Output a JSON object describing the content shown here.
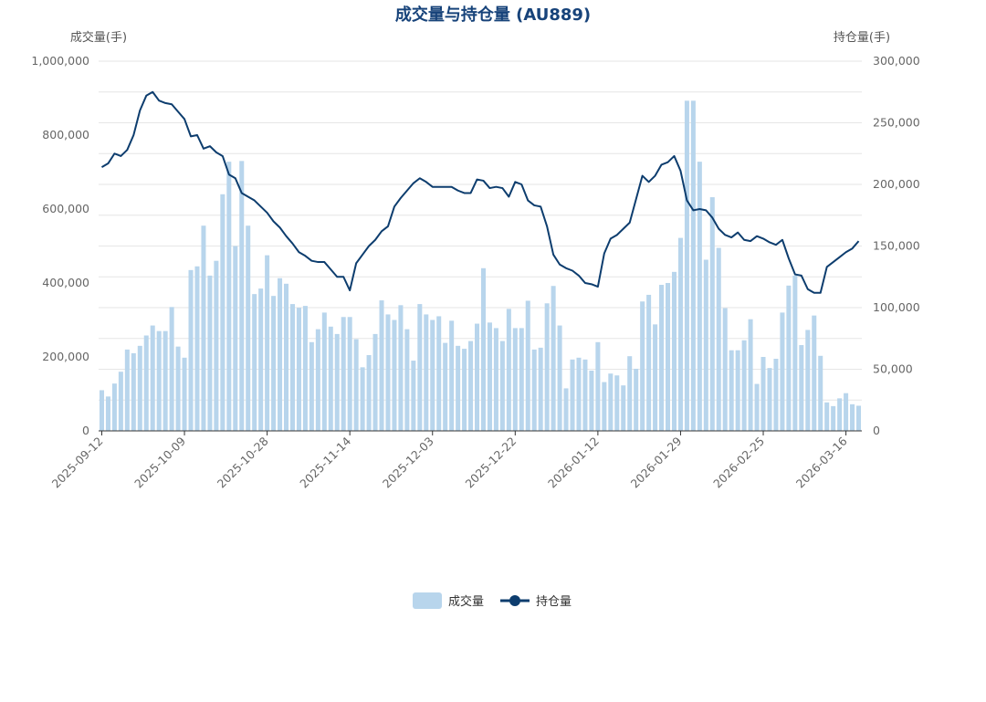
{
  "chart_data": {
    "type": "bar",
    "title": "成交量与持仓量 (AU889)",
    "ylabel_left": "成交量(手)",
    "ylabel_right": "持仓量(手)",
    "ylim_left": [
      0,
      1000000
    ],
    "ylim_right": [
      0,
      300000
    ],
    "yticks_left": [
      "0",
      "200,000",
      "400,000",
      "600,000",
      "800,000",
      "1,000,000"
    ],
    "yticks_right": [
      "0",
      "50,000",
      "100,000",
      "150,000",
      "200,000",
      "250,000",
      "300,000"
    ],
    "xtick_labels": [
      "2025-09-12",
      "2025-10-09",
      "2025-10-28",
      "2025-11-14",
      "2025-12-03",
      "2025-12-22",
      "2026-01-12",
      "2026-01-29",
      "2026-02-25",
      "2026-03-16"
    ],
    "xtick_indices": [
      0,
      13,
      26,
      39,
      52,
      65,
      78,
      91,
      104,
      117
    ],
    "series": [
      {
        "name": "成交量",
        "type": "bar",
        "axis": "left",
        "color": "#b8d5ec",
        "values": [
          110000,
          93000,
          128000,
          160000,
          220000,
          210000,
          230000,
          258000,
          285000,
          270000,
          270000,
          335000,
          228000,
          198000,
          435000,
          445000,
          555000,
          420000,
          460000,
          640000,
          728000,
          500000,
          730000,
          555000,
          370000,
          385000,
          475000,
          365000,
          413000,
          398000,
          343000,
          333000,
          338000,
          240000,
          275000,
          320000,
          282000,
          262000,
          308000,
          308000,
          248000,
          172000,
          205000,
          262000,
          353000,
          315000,
          300000,
          340000,
          275000,
          190000,
          343000,
          315000,
          300000,
          310000,
          238000,
          298000,
          230000,
          222000,
          243000,
          290000,
          440000,
          293000,
          278000,
          243000,
          330000,
          278000,
          278000,
          352000,
          220000,
          225000,
          345000,
          392000,
          285000,
          115000,
          193000,
          198000,
          193000,
          163000,
          240000,
          132000,
          155000,
          150000,
          123000,
          202000,
          168000,
          350000,
          368000,
          288000,
          395000,
          400000,
          430000,
          522000,
          893000,
          893000,
          728000,
          463000,
          632000,
          495000,
          332000,
          218000,
          218000,
          245000,
          302000,
          127000,
          200000,
          170000,
          195000,
          320000,
          393000,
          420000,
          232000,
          273000,
          312000,
          203000,
          77000,
          67000,
          88000,
          102000,
          72000,
          68000
        ]
      },
      {
        "name": "持仓量",
        "type": "line",
        "axis": "right",
        "color": "#0d3d6e",
        "values": [
          214000,
          217000,
          225000,
          223000,
          228000,
          240000,
          260000,
          272000,
          275000,
          268000,
          266000,
          265000,
          259000,
          253000,
          239000,
          240000,
          229000,
          231000,
          226000,
          223000,
          208000,
          205000,
          193000,
          190000,
          187000,
          182000,
          177000,
          170000,
          165000,
          158000,
          152000,
          145000,
          142000,
          138000,
          137000,
          137000,
          131000,
          125000,
          125000,
          114000,
          136000,
          143000,
          150000,
          155000,
          162000,
          166000,
          182000,
          189000,
          195000,
          201000,
          205000,
          202000,
          198000,
          198000,
          198000,
          198000,
          195000,
          193000,
          193000,
          204000,
          203000,
          197000,
          198000,
          197000,
          190000,
          202000,
          200000,
          187000,
          183000,
          182000,
          166000,
          143000,
          135000,
          132000,
          130000,
          126000,
          120000,
          119000,
          117000,
          144000,
          156000,
          159000,
          164000,
          169000,
          188000,
          207000,
          202000,
          207000,
          216000,
          218000,
          223000,
          211000,
          187000,
          179000,
          180000,
          179000,
          173000,
          164000,
          159000,
          157000,
          161000,
          155000,
          154000,
          158000,
          156000,
          153000,
          151000,
          155000,
          140000,
          127000,
          126000,
          115000,
          112000,
          112000,
          133000,
          137000,
          141000,
          145000,
          148000,
          154000
        ]
      }
    ],
    "legend": [
      {
        "name": "成交量",
        "type": "bar"
      },
      {
        "name": "持仓量",
        "type": "line"
      }
    ],
    "legend_position": "bottom-center",
    "grid": true
  }
}
